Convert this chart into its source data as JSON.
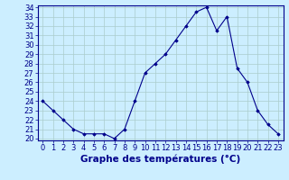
{
  "hours": [
    0,
    1,
    2,
    3,
    4,
    5,
    6,
    7,
    8,
    9,
    10,
    11,
    12,
    13,
    14,
    15,
    16,
    17,
    18,
    19,
    20,
    21,
    22,
    23
  ],
  "temps": [
    24,
    23,
    22,
    21,
    20.5,
    20.5,
    20.5,
    20,
    21,
    24,
    27,
    28,
    29,
    30.5,
    32,
    33.5,
    34,
    31.5,
    33,
    27.5,
    26,
    23,
    21.5,
    20.5
  ],
  "ylim_min": 20,
  "ylim_max": 34,
  "yticks": [
    20,
    21,
    22,
    23,
    24,
    25,
    26,
    27,
    28,
    29,
    30,
    31,
    32,
    33,
    34
  ],
  "xlabel": "Graphe des températures (°C)",
  "line_color": "#00008b",
  "marker": "D",
  "marker_size": 1.8,
  "bg_color": "#cceeff",
  "grid_color": "#aacccc",
  "tick_color": "#00008b",
  "xlabel_color": "#00008b",
  "xlabel_fontsize": 7.5,
  "tick_fontsize": 6.0,
  "linewidth": 0.8
}
